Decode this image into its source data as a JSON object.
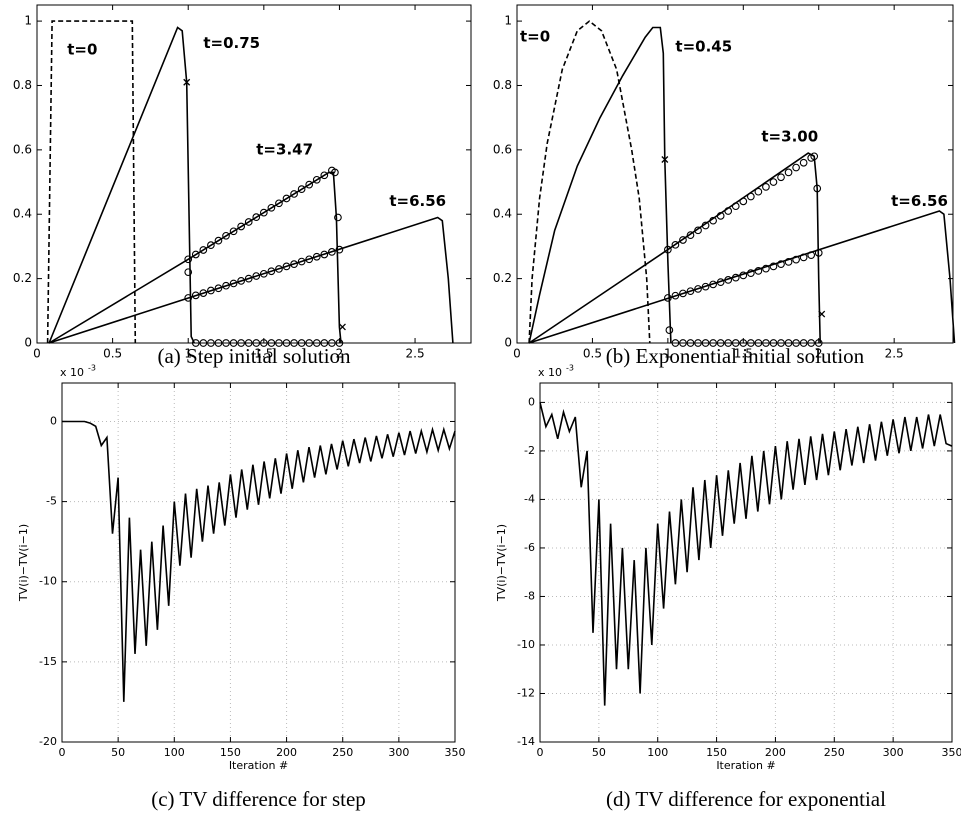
{
  "chart_data": [
    {
      "type": "line",
      "caption": "(a) Step initial solution",
      "xlim": [
        0,
        2.87
      ],
      "ylim": [
        0,
        1.05
      ],
      "xticks": [
        0,
        0.5,
        1,
        1.5,
        2,
        2.5
      ],
      "yticks": [
        0,
        0.2,
        0.4,
        0.6,
        0.8,
        1
      ],
      "grid": false,
      "annotations": [
        "t=0",
        "t=0.75",
        "t=3.47",
        "t=6.56"
      ],
      "series": [
        {
          "color": "#000000",
          "style": "dashed",
          "marker": "none",
          "x": [
            0.07,
            0.1,
            0.63,
            0.65
          ],
          "values": [
            0,
            1,
            1,
            0
          ]
        },
        {
          "color": "#000000",
          "style": "solid",
          "marker": "none",
          "x": [
            0.08,
            0.93,
            0.96,
            0.99,
            1.02,
            1.04
          ],
          "values": [
            0,
            0.98,
            0.97,
            0.81,
            0.02,
            0
          ]
        },
        {
          "color": "#000000",
          "style": "solid",
          "marker": "none",
          "x": [
            0.08,
            1,
            1.93,
            1.96,
            1.98,
            2,
            2.01
          ],
          "values": [
            0,
            0.26,
            0.53,
            0.53,
            0.39,
            0.05,
            0
          ]
        },
        {
          "color": "#000000",
          "style": "solid",
          "marker": "none",
          "x": [
            0.08,
            2.65,
            2.68,
            2.72,
            2.75
          ],
          "values": [
            0,
            0.39,
            0.38,
            0.2,
            0
          ]
        },
        {
          "color": "#000000",
          "style": "none",
          "marker": "circle",
          "x": [
            1,
            1.05,
            1.1,
            1.15,
            1.2,
            1.25,
            1.3,
            1.35,
            1.4,
            1.45,
            1.5,
            1.55,
            1.6,
            1.65,
            1.7,
            1.75,
            1.8,
            1.85,
            1.9,
            1.95,
            1.97,
            1.99,
            1
          ],
          "values": [
            0.26,
            0.275,
            0.289,
            0.304,
            0.318,
            0.333,
            0.347,
            0.362,
            0.376,
            0.391,
            0.405,
            0.42,
            0.434,
            0.449,
            0.463,
            0.478,
            0.492,
            0.507,
            0.521,
            0.536,
            0.53,
            0.39,
            0.22
          ]
        },
        {
          "color": "#000000",
          "style": "none",
          "marker": "circle",
          "x": [
            1,
            1.05,
            1.1,
            1.15,
            1.2,
            1.25,
            1.3,
            1.35,
            1.4,
            1.45,
            1.5,
            1.55,
            1.6,
            1.65,
            1.7,
            1.75,
            1.8,
            1.85,
            1.9,
            1.95,
            2
          ],
          "values": [
            0.14,
            0.148,
            0.155,
            0.163,
            0.17,
            0.178,
            0.185,
            0.193,
            0.2,
            0.208,
            0.215,
            0.223,
            0.23,
            0.238,
            0.245,
            0.253,
            0.26,
            0.268,
            0.275,
            0.283,
            0.29
          ]
        },
        {
          "color": "#000000",
          "style": "none",
          "marker": "circle",
          "x": [
            1.05,
            1.1,
            1.15,
            1.2,
            1.25,
            1.3,
            1.35,
            1.4,
            1.45,
            1.5,
            1.55,
            1.6,
            1.65,
            1.7,
            1.75,
            1.8,
            1.85,
            1.9,
            1.95,
            2
          ],
          "values": [
            0,
            0,
            0,
            0,
            0,
            0,
            0,
            0,
            0,
            0,
            0,
            0,
            0,
            0,
            0,
            0,
            0,
            0,
            0,
            0
          ]
        },
        {
          "color": "#000000",
          "style": "none",
          "marker": "x",
          "x": [
            0.99,
            2.02
          ],
          "values": [
            0.81,
            0.05
          ]
        }
      ]
    },
    {
      "type": "line",
      "caption": "(b) Exponential initial solution",
      "xlim": [
        0,
        2.89
      ],
      "ylim": [
        0,
        1.05
      ],
      "xticks": [
        0,
        0.5,
        1,
        1.5,
        2,
        2.5
      ],
      "yticks": [
        0,
        0.2,
        0.4,
        0.6,
        0.8,
        1
      ],
      "grid": false,
      "annotations": [
        "t=0",
        "t=0.45",
        "t=3.00",
        "t=6.56"
      ],
      "series": [
        {
          "color": "#000000",
          "style": "dashed",
          "marker": "none",
          "x": [
            0.08,
            0.1,
            0.15,
            0.2,
            0.3,
            0.4,
            0.48,
            0.56,
            0.66,
            0.76,
            0.81,
            0.86,
            0.88
          ],
          "values": [
            0,
            0.2,
            0.45,
            0.62,
            0.85,
            0.97,
            1,
            0.97,
            0.85,
            0.6,
            0.45,
            0.2,
            0
          ]
        },
        {
          "color": "#000000",
          "style": "solid",
          "marker": "none",
          "x": [
            0.08,
            0.15,
            0.25,
            0.4,
            0.55,
            0.7,
            0.85,
            0.9,
            0.95,
            0.97,
            0.98,
            1,
            1.02
          ],
          "values": [
            0,
            0.15,
            0.35,
            0.55,
            0.7,
            0.83,
            0.95,
            0.98,
            0.98,
            0.9,
            0.57,
            0.25,
            0
          ]
        },
        {
          "color": "#000000",
          "style": "solid",
          "marker": "none",
          "x": [
            0.08,
            1,
            1.93,
            1.97,
            1.99,
            2,
            2.01
          ],
          "values": [
            0,
            0.29,
            0.59,
            0.58,
            0.48,
            0.2,
            0
          ]
        },
        {
          "color": "#000000",
          "style": "solid",
          "marker": "none",
          "x": [
            0.08,
            2.8,
            2.83,
            2.87,
            2.9
          ],
          "values": [
            0,
            0.41,
            0.4,
            0.2,
            0
          ]
        },
        {
          "color": "#000000",
          "style": "none",
          "marker": "circle",
          "x": [
            1,
            1.05,
            1.1,
            1.15,
            1.2,
            1.25,
            1.3,
            1.35,
            1.4,
            1.45,
            1.5,
            1.55,
            1.6,
            1.65,
            1.7,
            1.75,
            1.8,
            1.85,
            1.9,
            1.95,
            1.97,
            1.99,
            1.01
          ],
          "values": [
            0.29,
            0.305,
            0.32,
            0.335,
            0.35,
            0.365,
            0.38,
            0.395,
            0.41,
            0.425,
            0.44,
            0.455,
            0.47,
            0.485,
            0.5,
            0.515,
            0.53,
            0.545,
            0.56,
            0.575,
            0.58,
            0.48,
            0.04
          ]
        },
        {
          "color": "#000000",
          "style": "none",
          "marker": "circle",
          "x": [
            1,
            1.05,
            1.1,
            1.15,
            1.2,
            1.25,
            1.3,
            1.35,
            1.4,
            1.45,
            1.5,
            1.55,
            1.6,
            1.65,
            1.7,
            1.75,
            1.8,
            1.85,
            1.9,
            1.95,
            2
          ],
          "values": [
            0.14,
            0.147,
            0.154,
            0.161,
            0.168,
            0.175,
            0.182,
            0.189,
            0.196,
            0.203,
            0.21,
            0.217,
            0.224,
            0.231,
            0.238,
            0.245,
            0.252,
            0.259,
            0.266,
            0.273,
            0.28
          ]
        },
        {
          "color": "#000000",
          "style": "none",
          "marker": "circle",
          "x": [
            1.05,
            1.1,
            1.15,
            1.2,
            1.25,
            1.3,
            1.35,
            1.4,
            1.45,
            1.5,
            1.55,
            1.6,
            1.65,
            1.7,
            1.75,
            1.8,
            1.85,
            1.9,
            1.95,
            2
          ],
          "values": [
            0,
            0,
            0,
            0,
            0,
            0,
            0,
            0,
            0,
            0,
            0,
            0,
            0,
            0,
            0,
            0,
            0,
            0,
            0,
            0
          ]
        },
        {
          "color": "#000000",
          "style": "none",
          "marker": "x",
          "x": [
            0.98,
            2.02
          ],
          "values": [
            0.57,
            0.09
          ]
        }
      ]
    },
    {
      "type": "line",
      "caption": "(c) TV difference for step",
      "xlabel": "Iteration #",
      "ylabel": "TV(i)−TV(i−1)",
      "y_offset_label": "x 10",
      "y_offset_exponent": "-3",
      "xlim": [
        0,
        350
      ],
      "ylim": [
        -20,
        2.4
      ],
      "xticks": [
        0,
        50,
        100,
        150,
        200,
        250,
        300,
        350
      ],
      "yticks": [
        -20,
        -15,
        -10,
        -5,
        0
      ],
      "grid": true,
      "x": [
        0,
        5,
        10,
        15,
        20,
        25,
        30,
        35,
        40,
        45,
        50,
        55,
        60,
        65,
        70,
        75,
        80,
        85,
        90,
        95,
        100,
        105,
        110,
        115,
        120,
        125,
        130,
        135,
        140,
        145,
        150,
        155,
        160,
        165,
        170,
        175,
        180,
        185,
        190,
        195,
        200,
        205,
        210,
        215,
        220,
        225,
        230,
        235,
        240,
        245,
        250,
        255,
        260,
        265,
        270,
        275,
        280,
        285,
        290,
        295,
        300,
        305,
        310,
        315,
        320,
        325,
        330,
        335,
        340,
        345,
        350
      ],
      "series": [
        {
          "color": "#000000",
          "style": "solid",
          "marker": "none",
          "values": [
            0,
            0,
            0,
            0,
            0,
            -0.1,
            -0.3,
            -1.5,
            -1,
            -7,
            -3.5,
            -17.5,
            -6,
            -14.5,
            -8,
            -14,
            -7.5,
            -13,
            -6.5,
            -11.5,
            -5,
            -9,
            -4.5,
            -8.5,
            -4.2,
            -7.5,
            -4,
            -7,
            -3.8,
            -6.5,
            -3.3,
            -6,
            -3,
            -5.5,
            -2.7,
            -5.2,
            -2.5,
            -4.8,
            -2.3,
            -4.5,
            -2,
            -4.2,
            -1.8,
            -3.8,
            -1.6,
            -3.5,
            -1.5,
            -3.3,
            -1.4,
            -3,
            -1.2,
            -2.8,
            -1.1,
            -2.6,
            -1,
            -2.5,
            -0.9,
            -2.3,
            -0.8,
            -2.2,
            -0.7,
            -2.1,
            -0.6,
            -2,
            -0.6,
            -1.9,
            -0.5,
            -1.8,
            -0.5,
            -1.7,
            -0.6
          ]
        }
      ]
    },
    {
      "type": "line",
      "caption": "(d) TV difference for exponential",
      "xlabel": "Iteration #",
      "ylabel": "TV(i)−TV(i−1)",
      "y_offset_label": "x 10",
      "y_offset_exponent": "-3",
      "xlim": [
        0,
        350
      ],
      "ylim": [
        -14,
        0.8
      ],
      "xticks": [
        0,
        50,
        100,
        150,
        200,
        250,
        300,
        350
      ],
      "yticks": [
        -14,
        -12,
        -10,
        -8,
        -6,
        -4,
        -2,
        0
      ],
      "grid": true,
      "x": [
        0,
        5,
        10,
        15,
        20,
        25,
        30,
        35,
        40,
        45,
        50,
        55,
        60,
        65,
        70,
        75,
        80,
        85,
        90,
        95,
        100,
        105,
        110,
        115,
        120,
        125,
        130,
        135,
        140,
        145,
        150,
        155,
        160,
        165,
        170,
        175,
        180,
        185,
        190,
        195,
        200,
        205,
        210,
        215,
        220,
        225,
        230,
        235,
        240,
        245,
        250,
        255,
        260,
        265,
        270,
        275,
        280,
        285,
        290,
        295,
        300,
        305,
        310,
        315,
        320,
        325,
        330,
        335,
        340,
        345,
        350
      ],
      "series": [
        {
          "color": "#000000",
          "style": "solid",
          "marker": "none",
          "values": [
            0,
            -1,
            -0.5,
            -1.5,
            -0.4,
            -1.2,
            -0.6,
            -3.5,
            -2,
            -9.5,
            -4,
            -12.5,
            -5,
            -11,
            -6,
            -11,
            -6.5,
            -12,
            -6,
            -10,
            -5,
            -8.5,
            -4.5,
            -7.5,
            -4,
            -7,
            -3.5,
            -6.5,
            -3.2,
            -6,
            -3,
            -5.5,
            -2.8,
            -5,
            -2.5,
            -4.8,
            -2.2,
            -4.5,
            -2,
            -4.2,
            -1.8,
            -4,
            -1.6,
            -3.6,
            -1.5,
            -3.4,
            -1.4,
            -3.2,
            -1.3,
            -3,
            -1.2,
            -2.8,
            -1.1,
            -2.6,
            -1,
            -2.5,
            -0.9,
            -2.4,
            -0.8,
            -2.2,
            -0.7,
            -2.1,
            -0.6,
            -2,
            -0.6,
            -1.9,
            -0.5,
            -1.8,
            -0.5,
            -1.7,
            -1.8
          ]
        }
      ]
    }
  ]
}
